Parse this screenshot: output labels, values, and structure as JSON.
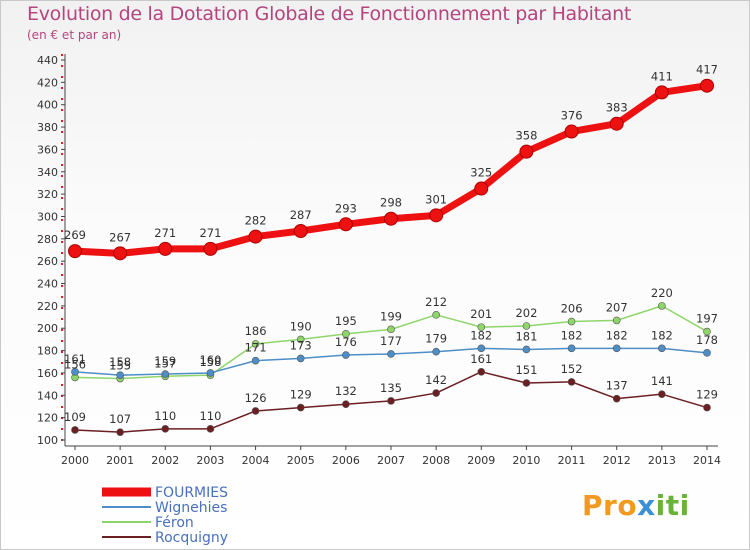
{
  "title": "Evolution de la Dotation Globale de Fonctionnement par Habitant",
  "subtitle": "(en € et par an)",
  "logo": {
    "part1": "Pro",
    "part2": "x",
    "part3": "iti"
  },
  "chart_data": {
    "type": "line",
    "title": "Evolution de la Dotation Globale de Fonctionnement par Habitant",
    "ylabel": "(en € et par an)",
    "xlabel": "",
    "x": [
      2000,
      2001,
      2002,
      2003,
      2004,
      2005,
      2006,
      2007,
      2008,
      2009,
      2010,
      2011,
      2012,
      2013,
      2014
    ],
    "ylim": [
      100,
      440
    ],
    "yticks": [
      100,
      120,
      140,
      160,
      180,
      200,
      220,
      240,
      260,
      280,
      300,
      320,
      340,
      360,
      380,
      400,
      420,
      440
    ],
    "grid": false,
    "legend_position": "bottom-left",
    "series": [
      {
        "name": "FOURMIES",
        "color": "#ee1111",
        "values": [
          269,
          267,
          271,
          271,
          282,
          287,
          293,
          298,
          301,
          325,
          358,
          376,
          383,
          411,
          417
        ]
      },
      {
        "name": "Wignehies",
        "color": "#4d8ec7",
        "values": [
          161,
          158,
          159,
          160,
          171,
          173,
          176,
          177,
          179,
          182,
          181,
          182,
          182,
          182,
          178
        ]
      },
      {
        "name": "Féron",
        "color": "#8ed66a",
        "values": [
          156,
          155,
          157,
          158,
          186,
          190,
          195,
          199,
          212,
          201,
          202,
          206,
          207,
          220,
          197
        ]
      },
      {
        "name": "Rocquigny",
        "color": "#6b1f22",
        "values": [
          109,
          107,
          110,
          110,
          126,
          129,
          132,
          135,
          142,
          161,
          151,
          152,
          137,
          141,
          129
        ]
      }
    ]
  }
}
